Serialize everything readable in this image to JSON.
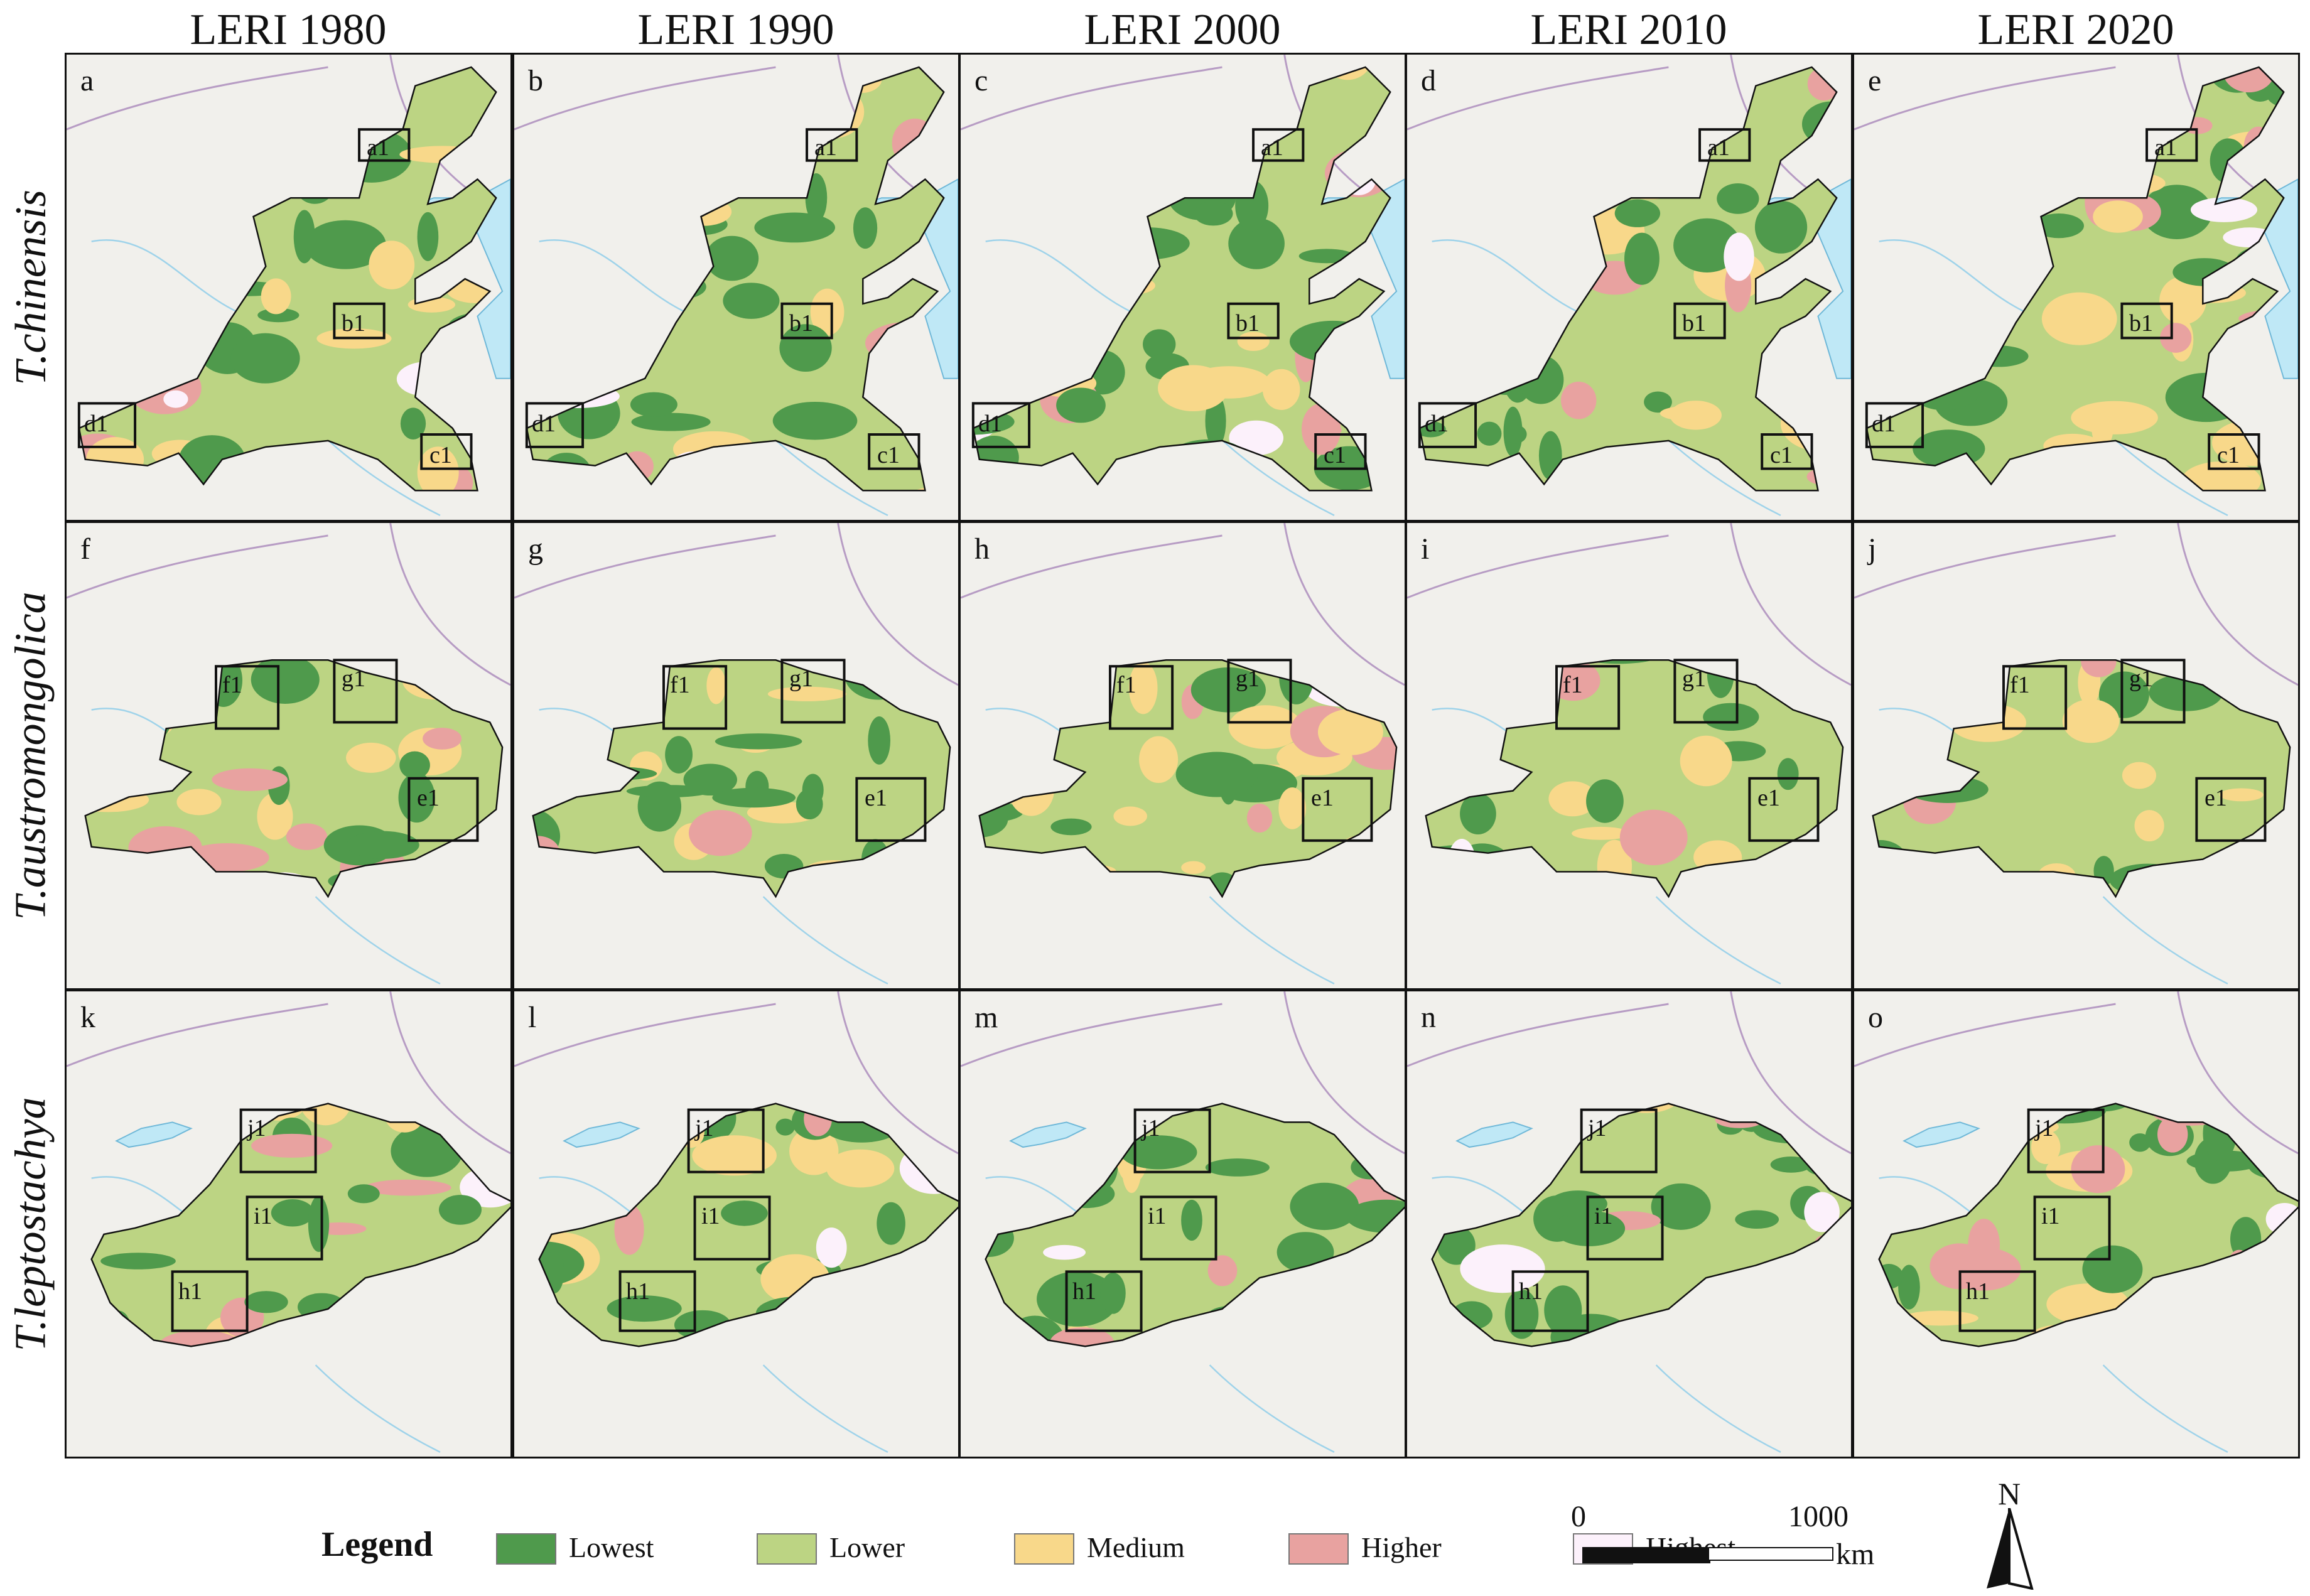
{
  "columns": [
    "LERI 1980",
    "LERI 1990",
    "LERI 2000",
    "LERI 2010",
    "LERI 2020"
  ],
  "rows": [
    {
      "species": "T.chinensis",
      "panels": [
        "a",
        "b",
        "c",
        "d",
        "e"
      ],
      "insets": [
        "a1",
        "b1",
        "c1",
        "d1"
      ]
    },
    {
      "species": "T.austromongolica",
      "panels": [
        "f",
        "g",
        "h",
        "i",
        "j"
      ],
      "insets": [
        "f1",
        "g1",
        "e1"
      ]
    },
    {
      "species": "T.leptostachya",
      "panels": [
        "k",
        "l",
        "m",
        "n",
        "o"
      ],
      "insets": [
        "j1",
        "i1",
        "h1"
      ]
    }
  ],
  "legend": {
    "title": "Legend",
    "classes": [
      {
        "label": "Lowest",
        "color": "#4f9a4c"
      },
      {
        "label": "Lower",
        "color": "#bcd483"
      },
      {
        "label": "Medium",
        "color": "#f8d88a"
      },
      {
        "label": "Higher",
        "color": "#e8a2a0"
      },
      {
        "label": "Highest",
        "color": "#fcf1fb"
      }
    ]
  },
  "scale_bar": {
    "start": "0",
    "end": "1000",
    "unit": "km"
  },
  "north_arrow": {
    "label": "N"
  },
  "colors": {
    "water": "#bfe8f6",
    "basemap": "#f1f0ec",
    "boundary": "#b79cc4",
    "river": "#9fd3ea",
    "inset_frame": "#111111"
  }
}
